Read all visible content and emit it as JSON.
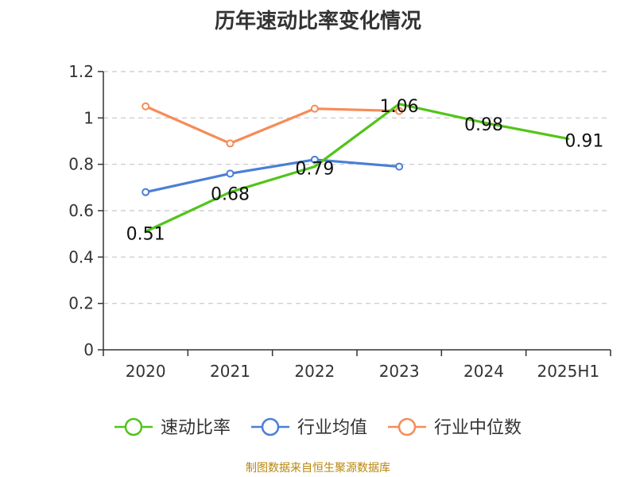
{
  "title": "历年速动比率变化情况",
  "footer": "制图数据来自恒生聚源数据库",
  "chart_data": {
    "type": "line",
    "categories": [
      "2020",
      "2021",
      "2022",
      "2023",
      "2024",
      "2025H1"
    ],
    "ylim": [
      0,
      1.2
    ],
    "yticks": [
      0,
      0.2,
      0.4,
      0.6,
      0.8,
      1,
      1.2
    ],
    "ytick_labels": [
      "0",
      "0.2",
      "0.4",
      "0.6",
      "0.8",
      "1",
      "1.2"
    ],
    "grid": true,
    "legend_position": "bottom",
    "series": [
      {
        "name": "速动比率",
        "color": "#52c41a",
        "values": [
          0.51,
          0.68,
          0.79,
          1.06,
          0.98,
          0.91
        ],
        "labels": [
          "0.51",
          "0.68",
          "0.79",
          "1.06",
          "0.98",
          "0.91"
        ],
        "show_labels": true
      },
      {
        "name": "行业均值",
        "color": "#4a7fd6",
        "values": [
          0.68,
          0.76,
          0.82,
          0.79,
          null,
          null
        ],
        "show_labels": false
      },
      {
        "name": "行业中位数",
        "color": "#f58c57",
        "values": [
          1.05,
          0.89,
          1.04,
          1.03,
          null,
          null
        ],
        "show_labels": false
      }
    ]
  }
}
